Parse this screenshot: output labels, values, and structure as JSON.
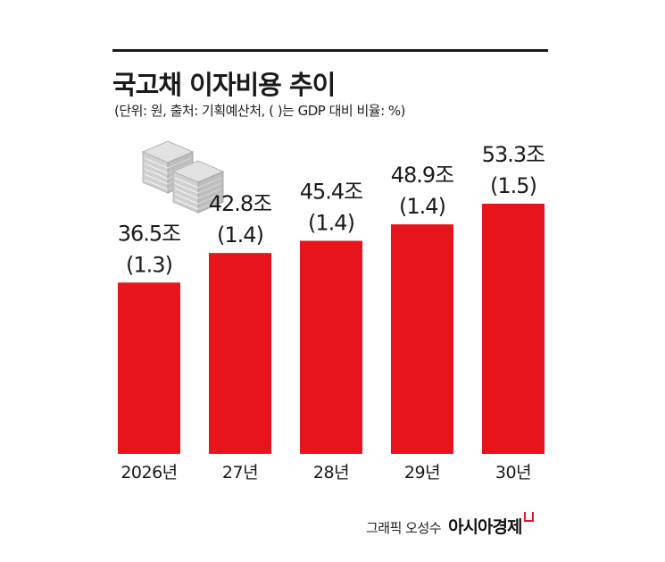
{
  "header": {
    "title": "국고채 이자비용 추이",
    "subtitle": "(단위: 원, 출처: 기획예산처, ( )는 GDP 대비 비율: %)"
  },
  "colors": {
    "bar": "#e8141c",
    "text": "#1a1a1a",
    "icon": "#c8c8c8"
  },
  "icon": "money-stack-icon",
  "chart_data": {
    "type": "bar",
    "categories": [
      "2026년",
      "27년",
      "28년",
      "29년",
      "30년"
    ],
    "values": [
      36.5,
      42.8,
      45.4,
      48.9,
      53.3
    ],
    "value_labels": [
      "36.5조",
      "42.8조",
      "45.4조",
      "48.9조",
      "53.3조"
    ],
    "ratio_labels": [
      "(1.3)",
      "(1.4)",
      "(1.4)",
      "(1.4)",
      "(1.5)"
    ],
    "title": "국고채 이자비용 추이",
    "xlabel": "",
    "ylabel": "",
    "grid": false
  },
  "credit": {
    "author": "그래픽 오성수",
    "brand": "아시아경제"
  }
}
